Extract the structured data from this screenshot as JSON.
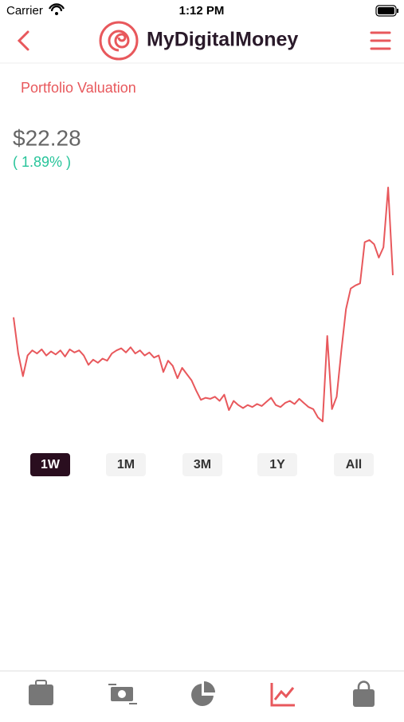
{
  "status_bar": {
    "carrier": "Carrier",
    "time": "1:12 PM"
  },
  "header": {
    "title": "MyDigitalMoney"
  },
  "portfolio": {
    "label": "Portfolio Valuation",
    "value": "$22.28",
    "change": "( 1.89% )"
  },
  "chart_data": {
    "type": "line",
    "color": "#e8585c",
    "ylim": [
      20.7,
      23.2
    ],
    "values": [
      21.87,
      21.52,
      21.3,
      21.5,
      21.55,
      21.52,
      21.56,
      21.5,
      21.54,
      21.51,
      21.55,
      21.49,
      21.56,
      21.53,
      21.55,
      21.5,
      21.41,
      21.46,
      21.43,
      21.47,
      21.45,
      21.52,
      21.55,
      21.57,
      21.53,
      21.58,
      21.52,
      21.55,
      21.5,
      21.53,
      21.48,
      21.5,
      21.34,
      21.45,
      21.4,
      21.28,
      21.38,
      21.32,
      21.26,
      21.16,
      21.07,
      21.09,
      21.08,
      21.1,
      21.06,
      21.12,
      20.97,
      21.06,
      21.02,
      20.99,
      21.02,
      21.0,
      21.03,
      21.01,
      21.05,
      21.09,
      21.02,
      21.0,
      21.04,
      21.06,
      21.03,
      21.08,
      21.04,
      21.0,
      20.98,
      20.9,
      20.86,
      21.69,
      20.98,
      21.1,
      21.55,
      21.95,
      22.15,
      22.18,
      22.2,
      22.6,
      22.62,
      22.58,
      22.45,
      22.55,
      23.13,
      22.28
    ]
  },
  "ranges": [
    "1W",
    "1M",
    "3M",
    "1Y",
    "All"
  ]
}
